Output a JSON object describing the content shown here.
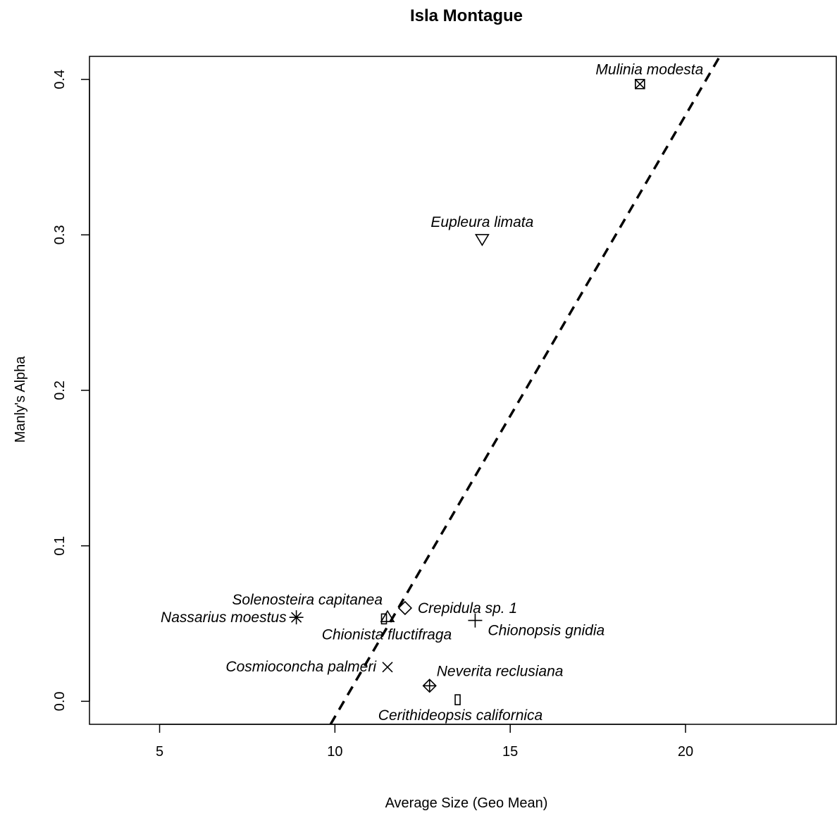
{
  "chart_data": {
    "type": "scatter",
    "title": "Isla Montague",
    "xlabel": "Average Size (Geo Mean)",
    "ylabel": "Manly's Alpha",
    "xlim": [
      3,
      24.3
    ],
    "ylim": [
      -0.0148,
      0.4148
    ],
    "xticks": [
      5,
      10,
      15,
      20
    ],
    "yticks": [
      0.0,
      0.1,
      0.2,
      0.3,
      0.4
    ],
    "xtick_labels": [
      "5",
      "10",
      "15",
      "20"
    ],
    "ytick_labels": [
      "0.0",
      "0.1",
      "0.2",
      "0.3",
      "0.4"
    ],
    "grid": false,
    "legend": "none",
    "trend_line": {
      "style": "dashed",
      "slope": 0.0387,
      "intercept": -0.397
    },
    "points": [
      {
        "label": "Mulinia modesta",
        "x": 18.7,
        "y": 0.397,
        "marker": "boxed-x",
        "label_pos": "upper-left"
      },
      {
        "label": "Eupleura limata",
        "x": 14.2,
        "y": 0.297,
        "marker": "triangle-down",
        "label_pos": "top"
      },
      {
        "label": "Crepidula sp. 1",
        "x": 12.0,
        "y": 0.06,
        "marker": "diamond",
        "label_pos": "right"
      },
      {
        "label": "Solenosteira capitanea",
        "x": 11.5,
        "y": 0.054,
        "marker": "triangle-up",
        "label_pos": "upper-left"
      },
      {
        "label": "Nassarius moestus",
        "x": 8.9,
        "y": 0.054,
        "marker": "asterisk",
        "label_pos": "left"
      },
      {
        "label": "Chionista fluctifraga",
        "x": 11.4,
        "y": 0.053,
        "marker": "square-thin",
        "label_pos": "bottom"
      },
      {
        "label": "Chionopsis gnidia",
        "x": 14.0,
        "y": 0.052,
        "marker": "plus",
        "label_pos": "lower-right"
      },
      {
        "label": "Cosmioconcha palmeri",
        "x": 11.5,
        "y": 0.022,
        "marker": "x",
        "label_pos": "left"
      },
      {
        "label": "Neverita reclusiana",
        "x": 12.7,
        "y": 0.01,
        "marker": "diamond-plus",
        "label_pos": "upper-right"
      },
      {
        "label": "Cerithideopsis californica",
        "x": 13.5,
        "y": 0.001,
        "marker": "square-thin",
        "label_pos": "bottom"
      }
    ]
  }
}
